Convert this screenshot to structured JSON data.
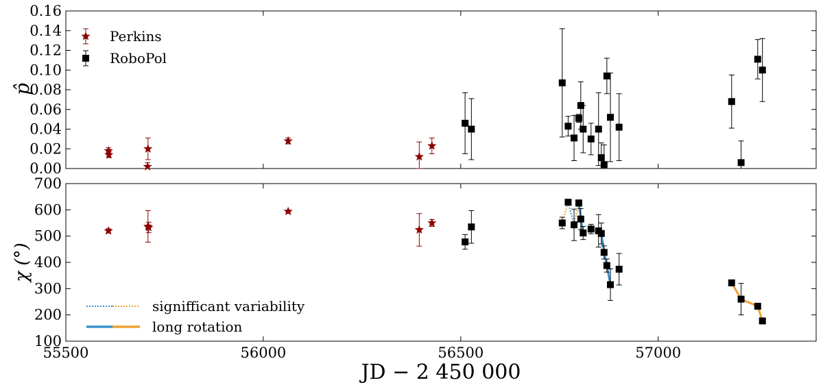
{
  "chart_data": [
    {
      "type": "scatter",
      "panel": "top",
      "ylabel": "p̂",
      "ylim": [
        0,
        0.16
      ],
      "yticks": [
        0.0,
        0.02,
        0.04,
        0.06,
        0.08,
        0.1,
        0.12,
        0.14,
        0.16
      ],
      "yticklabels": [
        "0.00",
        "0.02",
        "0.04",
        "0.06",
        "0.08",
        "0.10",
        "0.12",
        "0.14",
        "0.16"
      ],
      "legend": {
        "placement": "top-left",
        "entries": [
          {
            "label": "Perkins",
            "series": "Perkins"
          },
          {
            "label": "RoboPol",
            "series": "RoboPol"
          }
        ]
      },
      "series": [
        {
          "name": "Perkins",
          "marker": "star",
          "color": "#8b0000",
          "points": [
            {
              "x": 55608,
              "y": 0.018,
              "err": 0.003
            },
            {
              "x": 55609,
              "y": 0.014,
              "err": 0.003
            },
            {
              "x": 55708,
              "y": 0.02,
              "err": 0.011
            },
            {
              "x": 55707,
              "y": 0.002,
              "err": 0.004
            },
            {
              "x": 56063,
              "y": 0.028,
              "err": 0.003
            },
            {
              "x": 56395,
              "y": 0.012,
              "err": 0.015
            },
            {
              "x": 56427,
              "y": 0.023,
              "err": 0.008
            }
          ]
        },
        {
          "name": "RoboPol",
          "marker": "square",
          "color": "#000000",
          "points": [
            {
              "x": 56511,
              "y": 0.046,
              "err": 0.031
            },
            {
              "x": 56527,
              "y": 0.04,
              "err": 0.031
            },
            {
              "x": 56757,
              "y": 0.087,
              "err": 0.055
            },
            {
              "x": 56772,
              "y": 0.043,
              "err": 0.01
            },
            {
              "x": 56787,
              "y": 0.031,
              "err": 0.023
            },
            {
              "x": 56799,
              "y": 0.051,
              "err": 0.004
            },
            {
              "x": 56804,
              "y": 0.064,
              "err": 0.024
            },
            {
              "x": 56810,
              "y": 0.04,
              "err": 0.024
            },
            {
              "x": 56830,
              "y": 0.03,
              "err": 0.016
            },
            {
              "x": 56849,
              "y": 0.04,
              "err": 0.037
            },
            {
              "x": 56856,
              "y": 0.011,
              "err": 0.015
            },
            {
              "x": 56863,
              "y": 0.004,
              "err": 0.02
            },
            {
              "x": 56870,
              "y": 0.094,
              "err": 0.018
            },
            {
              "x": 56879,
              "y": 0.052,
              "err": 0.045
            },
            {
              "x": 56901,
              "y": 0.042,
              "err": 0.034
            },
            {
              "x": 57186,
              "y": 0.068,
              "err": 0.027
            },
            {
              "x": 57210,
              "y": 0.006,
              "err": 0.022
            },
            {
              "x": 57252,
              "y": 0.111,
              "err": 0.02
            },
            {
              "x": 57264,
              "y": 0.1,
              "err": 0.032
            }
          ]
        }
      ]
    },
    {
      "type": "scatter",
      "panel": "bottom",
      "xlabel": "JD − 2 450 000",
      "ylabel": "χ (°)",
      "xlim": [
        55500,
        57400
      ],
      "xticks": [
        55500,
        56000,
        56500,
        57000
      ],
      "xticklabels": [
        "55500",
        "56000",
        "56500",
        "57000"
      ],
      "ylim": [
        100,
        700
      ],
      "yticks": [
        100,
        200,
        300,
        400,
        500,
        600,
        700
      ],
      "yticklabels": [
        "100",
        "200",
        "300",
        "400",
        "500",
        "600",
        "700"
      ],
      "legend": {
        "placement": "bottom-left",
        "entries": [
          {
            "label": "signifficant variability",
            "style": "dotted",
            "colors": [
              "#3a93cf",
              "#f0a030"
            ]
          },
          {
            "label": "long rotation",
            "style": "solid",
            "colors": [
              "#3a93cf",
              "#f0a030"
            ]
          }
        ]
      },
      "series": [
        {
          "name": "Perkins",
          "marker": "star",
          "color": "#8b0000",
          "points": [
            {
              "x": 55608,
              "y": 520,
              "err": 8
            },
            {
              "x": 55708,
              "y": 537,
              "err": 60
            },
            {
              "x": 55710,
              "y": 533,
              "err": 20
            },
            {
              "x": 56063,
              "y": 594,
              "err": 5
            },
            {
              "x": 56395,
              "y": 524,
              "err": 62
            },
            {
              "x": 56427,
              "y": 550,
              "err": 13
            }
          ]
        },
        {
          "name": "RoboPol",
          "marker": "square",
          "color": "#000000",
          "points": [
            {
              "x": 56511,
              "y": 478,
              "err": 28
            },
            {
              "x": 56527,
              "y": 535,
              "err": 62
            },
            {
              "x": 56757,
              "y": 550,
              "err": 22
            },
            {
              "x": 56772,
              "y": 629,
              "err": 5
            },
            {
              "x": 56787,
              "y": 543,
              "err": 60
            },
            {
              "x": 56799,
              "y": 626,
              "err": 12
            },
            {
              "x": 56804,
              "y": 565,
              "err": 40
            },
            {
              "x": 56810,
              "y": 512,
              "err": 25
            },
            {
              "x": 56830,
              "y": 527,
              "err": 18
            },
            {
              "x": 56849,
              "y": 520,
              "err": 62
            },
            {
              "x": 56856,
              "y": 510,
              "err": 40
            },
            {
              "x": 56863,
              "y": 438,
              "err": 25
            },
            {
              "x": 56870,
              "y": 388,
              "err": 25
            },
            {
              "x": 56879,
              "y": 315,
              "err": 60
            },
            {
              "x": 56901,
              "y": 374,
              "err": 60
            },
            {
              "x": 57186,
              "y": 322,
              "err": 5
            },
            {
              "x": 57210,
              "y": 260,
              "err": 60
            },
            {
              "x": 57252,
              "y": 233,
              "err": 5
            },
            {
              "x": 57264,
              "y": 177,
              "err": 5
            }
          ]
        }
      ],
      "rotation_lines": [
        {
          "style": "solid",
          "color": "#3a93cf",
          "points": [
            [
              56799,
              626
            ],
            [
              56804,
              565
            ],
            [
              56810,
              512
            ]
          ]
        },
        {
          "style": "solid",
          "color": "#3a93cf",
          "points": [
            [
              56849,
              520
            ],
            [
              56856,
              510
            ],
            [
              56863,
              438
            ],
            [
              56870,
              388
            ],
            [
              56879,
              315
            ]
          ]
        },
        {
          "style": "solid",
          "color": "#f0a030",
          "points": [
            [
              57186,
              322
            ],
            [
              57210,
              260
            ],
            [
              57252,
              233
            ],
            [
              57264,
              177
            ]
          ]
        },
        {
          "style": "dotted",
          "color": "#3a93cf",
          "points": [
            [
              56772,
              629
            ],
            [
              56787,
              543
            ]
          ]
        },
        {
          "style": "dotted",
          "color": "#f0a030",
          "points": [
            [
              56757,
              550
            ],
            [
              56772,
              629
            ]
          ]
        },
        {
          "style": "dotted",
          "color": "#f0a030",
          "points": [
            [
              56787,
              543
            ],
            [
              56799,
              626
            ]
          ]
        }
      ]
    }
  ]
}
